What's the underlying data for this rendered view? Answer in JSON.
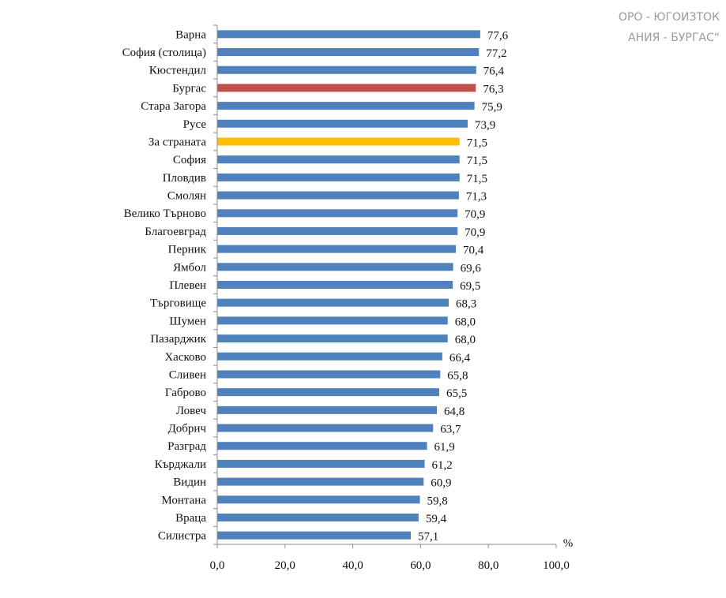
{
  "header": {
    "line1": "ОРО - ЮГОИЗТОК",
    "line2": "АНИЯ - БУРГАС“"
  },
  "chart_data": {
    "type": "bar",
    "orientation": "horizontal",
    "categories": [
      "Варна",
      "София (столица)",
      "Кюстендил",
      "Бургас",
      "Стара Загора",
      "Русе",
      "За страната",
      "София",
      "Пловдив",
      "Смолян",
      "Велико Търново",
      "Благоевград",
      "Перник",
      "Ямбол",
      "Плевен",
      "Търговище",
      "Шумен",
      "Пазарджик",
      "Хасково",
      "Сливен",
      "Габрово",
      "Ловеч",
      "Добрич",
      "Разград",
      "Кърджали",
      "Видин",
      "Монтана",
      "Враца",
      "Силистра"
    ],
    "values": [
      77.6,
      77.2,
      76.4,
      76.3,
      75.9,
      73.9,
      71.5,
      71.5,
      71.5,
      71.3,
      70.9,
      70.9,
      70.4,
      69.6,
      69.5,
      68.3,
      68.0,
      68.0,
      66.4,
      65.8,
      65.5,
      64.8,
      63.7,
      61.9,
      61.2,
      60.9,
      59.8,
      59.4,
      57.1
    ],
    "value_labels": [
      "77,6",
      "77,2",
      "76,4",
      "76,3",
      "75,9",
      "73,9",
      "71,5",
      "71,5",
      "71,5",
      "71,3",
      "70,9",
      "70,9",
      "70,4",
      "69,6",
      "69,5",
      "68,3",
      "68,0",
      "68,0",
      "66,4",
      "65,8",
      "65,5",
      "64,8",
      "63,7",
      "61,9",
      "61,2",
      "60,9",
      "59,8",
      "59,4",
      "57,1"
    ],
    "highlight": {
      "Бургас": "#c0504d",
      "За страната": "#ffc000"
    },
    "bar_color": "#4f81bd",
    "x_ticks": [
      "0,0",
      "20,0",
      "40,0",
      "60,0",
      "80,0",
      "100,0"
    ],
    "xlim": [
      0,
      100
    ],
    "unit_label": "%",
    "grid": false
  }
}
